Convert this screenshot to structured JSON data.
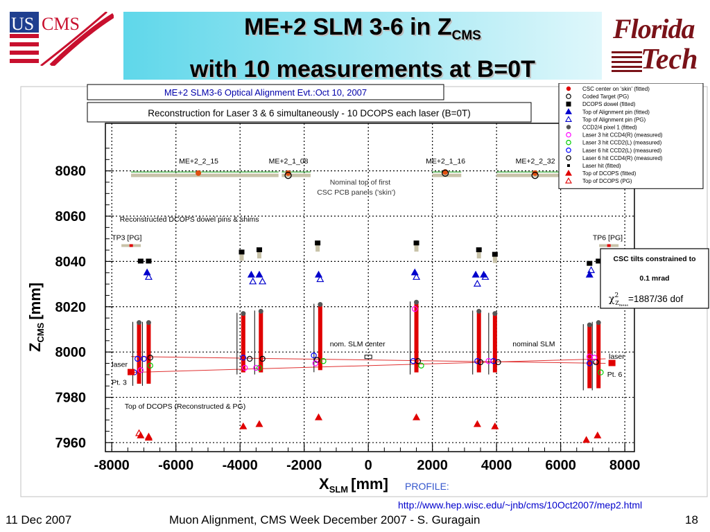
{
  "slide": {
    "title_line1": "ME+2 SLM 3-6 in Z",
    "title_line1_sub": "CMS",
    "title_line2": "with 10 measurements at B=0T",
    "logo_left_us": "US",
    "logo_left_cms": "CMS",
    "logo_right_line1": "Florida",
    "logo_right_line2": "Tech",
    "url": "http://www.hep.wisc.edu/~jnb/cms/10Oct2007/mep2.html",
    "footer_date": "11 Dec 2007",
    "footer_center": "Muon Alignment, CMS Week December 2007  - S. Guragain",
    "footer_page": "18"
  },
  "chart_data": {
    "type": "scatter",
    "title": "ME+2 SLM3-6 Optical Alignment Evt.:Oct 10, 2007",
    "subtitle": "Reconstruction for Laser 3 & 6 simultaneously - 10 DCOPS each laser (B=0T)",
    "xlabel_main": "X",
    "xlabel_sub": "SLM",
    "xlabel_unit": "[mm]",
    "xlabel_extra": "PROFILE:",
    "ylabel_main": "Z",
    "ylabel_sub": "CMS",
    "ylabel_unit": "[mm]",
    "xlim": [
      -8200,
      8300
    ],
    "ylim": [
      7956,
      8101
    ],
    "xticks": [
      -8000,
      -6000,
      -4000,
      -2000,
      0,
      2000,
      4000,
      6000,
      8000
    ],
    "yticks": [
      7960,
      7980,
      8000,
      8020,
      8040,
      8060,
      8080
    ],
    "grid": true,
    "legend_position": "top-right",
    "legend": [
      {
        "label": "CSC center on 'skin' (fitted)",
        "marker": "circle-filled",
        "color": "#e00000"
      },
      {
        "label": "Coded Target (PG)",
        "marker": "circle-open",
        "color": "#000000"
      },
      {
        "label": "DCOPS dowel (fitted)",
        "marker": "square-filled",
        "color": "#000000"
      },
      {
        "label": "Top of Alignment pin (fitted)",
        "marker": "triangle-filled",
        "color": "#0000cc"
      },
      {
        "label": "Top of Alignment pin (PG)",
        "marker": "triangle-open",
        "color": "#0000cc"
      },
      {
        "label": "CCD2/4 pixel 1 (fitted)",
        "marker": "circle-filled",
        "color": "#555555"
      },
      {
        "label": "Laser 3 hit CCD4(R) (measured)",
        "marker": "circle-open",
        "color": "#ff00ff"
      },
      {
        "label": "Laser 3 hit CCD2(L) (measured)",
        "marker": "circle-open",
        "color": "#00cc00"
      },
      {
        "label": "Laser 6 hit CCD2(L) (measured)",
        "marker": "circle-open",
        "color": "#0000ff"
      },
      {
        "label": "Laser 6 hit CCD4(R) (measured)",
        "marker": "circle-open",
        "color": "#000000"
      },
      {
        "label": "Laser hit (fitted)",
        "marker": "square-small",
        "color": "#000000"
      },
      {
        "label": "Top of DCOPS (fitted)",
        "marker": "triangle-filled",
        "color": "#e00000"
      },
      {
        "label": "Top of DCOPS (PG)",
        "marker": "triangle-open",
        "color": "#e00000"
      }
    ],
    "annotations": {
      "chambers": [
        {
          "label": "ME+2_2_15",
          "x": -5300,
          "z": 8079
        },
        {
          "label": "ME+2_1_08",
          "x": -2500,
          "z": 8078
        },
        {
          "label": "ME+2_1_16",
          "x": 2400,
          "z": 8079
        },
        {
          "label": "ME+2_2_32",
          "x": 5200,
          "z": 8079
        }
      ],
      "nominal_skin": "Nominal top of first",
      "nominal_skin_2": "CSC PCB panels ('skin')",
      "dowels_label": "Reconstructed DCOPS dowel pins & shims",
      "tp3": "TP3 [PG]",
      "tp6": "TP6 [PG]",
      "slm_center": "nom. SLM center",
      "nominal_slm": "nominal SLM",
      "laser_left": "laser",
      "laser_right": "laser",
      "pt3": "Pt. 3",
      "pt6": "Pt. 6",
      "dcops_top_label": "Top of DCOPS (Reconstructed & PG)",
      "tilt_box_line1": "CSC tilts constrained to",
      "tilt_box_line2": "0.1 mrad",
      "tilt_box_chi_pre": "χ",
      "tilt_box_chi_sup": "2",
      "tilt_box_chi_sub": "Z",
      "tilt_box_chi_subsub": "meas",
      "tilt_box_chi_val": "=1887/36 dof"
    },
    "laser3_line": {
      "x": [
        -7400,
        7400
      ],
      "z": [
        7991,
        7997
      ]
    },
    "laser6_line": {
      "x": [
        -7400,
        7400
      ],
      "z": [
        7998,
        7995
      ]
    },
    "dowel_columns": [
      {
        "x": -7100,
        "z_dowel": 8040
      },
      {
        "x": -6850,
        "z_dowel": 8040
      },
      {
        "x": -3950,
        "z_dowel": 8044
      },
      {
        "x": -3400,
        "z_dowel": 8045
      },
      {
        "x": -1580,
        "z_dowel": 8048
      },
      {
        "x": 1500,
        "z_dowel": 8048
      },
      {
        "x": 3450,
        "z_dowel": 8045
      },
      {
        "x": 3950,
        "z_dowel": 8043
      },
      {
        "x": 6900,
        "z_dowel": 8039
      },
      {
        "x": 7180,
        "z_dowel": 8040
      }
    ],
    "dcops_bars": [
      {
        "x": -7150,
        "z_top": 8013,
        "z_bot": 7986
      },
      {
        "x": -6850,
        "z_top": 8013,
        "z_bot": 7986
      },
      {
        "x": -3900,
        "z_top": 8017,
        "z_bot": 7991
      },
      {
        "x": -3350,
        "z_top": 8018,
        "z_bot": 7991
      },
      {
        "x": -1500,
        "z_top": 8021,
        "z_bot": 7992
      },
      {
        "x": 1500,
        "z_top": 8022,
        "z_bot": 7991
      },
      {
        "x": 3450,
        "z_top": 8018,
        "z_bot": 7991
      },
      {
        "x": 3950,
        "z_top": 8017,
        "z_bot": 7991
      },
      {
        "x": 6900,
        "z_top": 8012,
        "z_bot": 7984
      },
      {
        "x": 7180,
        "z_top": 8013,
        "z_bot": 7984
      }
    ],
    "pins_fitted": [
      {
        "x": -6900,
        "z": 8035
      },
      {
        "x": -3650,
        "z": 8034
      },
      {
        "x": -3400,
        "z": 8034
      },
      {
        "x": -1550,
        "z": 8034
      },
      {
        "x": 1450,
        "z": 8035
      },
      {
        "x": 3350,
        "z": 8034
      },
      {
        "x": 3600,
        "z": 8034
      },
      {
        "x": 6900,
        "z": 8034
      }
    ],
    "pins_pg": [
      {
        "x": -6850,
        "z": 8033
      },
      {
        "x": -3600,
        "z": 8031
      },
      {
        "x": -3300,
        "z": 8031
      },
      {
        "x": -1500,
        "z": 8032
      },
      {
        "x": 1500,
        "z": 8033
      },
      {
        "x": 3400,
        "z": 8030
      },
      {
        "x": 3650,
        "z": 8033
      },
      {
        "x": 6950,
        "z": 8036
      }
    ],
    "dcops_top_fitted": [
      {
        "x": -7100,
        "z": 7963
      },
      {
        "x": -6850,
        "z": 7962
      },
      {
        "x": -3900,
        "z": 7967
      },
      {
        "x": -3400,
        "z": 7968
      },
      {
        "x": -1550,
        "z": 7971
      },
      {
        "x": 1500,
        "z": 7971
      },
      {
        "x": 3400,
        "z": 7968
      },
      {
        "x": 3950,
        "z": 7967
      },
      {
        "x": 6800,
        "z": 7961
      },
      {
        "x": 7150,
        "z": 7963
      }
    ],
    "dcops_top_pg": [
      {
        "x": -7150,
        "z": 7964
      },
      {
        "x": -6850,
        "z": 7962.5
      }
    ],
    "laser_hits": [
      {
        "x": -7200,
        "z": 7997,
        "color": "#0000ff"
      },
      {
        "x": -7000,
        "z": 7997,
        "color": "#0000ff"
      },
      {
        "x": -6800,
        "z": 7997.5,
        "color": "#000000"
      },
      {
        "x": -7100,
        "z": 7992,
        "color": "#ff00ff"
      },
      {
        "x": -6800,
        "z": 7994,
        "color": "#00cc00"
      },
      {
        "x": -7300,
        "z": 7991,
        "color": "#0000ff"
      },
      {
        "x": -3900,
        "z": 7997.5,
        "color": "#0000ff"
      },
      {
        "x": -3700,
        "z": 7997,
        "color": "#000000"
      },
      {
        "x": -3850,
        "z": 7993,
        "color": "#ff00ff"
      },
      {
        "x": -3400,
        "z": 7993,
        "color": "#00cc00"
      },
      {
        "x": -3300,
        "z": 7997,
        "color": "#000000"
      },
      {
        "x": -3500,
        "z": 7993,
        "color": "#ff00ff"
      },
      {
        "x": -1700,
        "z": 7998.5,
        "color": "#0000ff"
      },
      {
        "x": -1600,
        "z": 7996.5,
        "color": "#000000"
      },
      {
        "x": -1650,
        "z": 7995,
        "color": "#ff00ff"
      },
      {
        "x": -1400,
        "z": 7996,
        "color": "#00cc00"
      },
      {
        "x": 1400,
        "z": 7996,
        "color": "#0000ff"
      },
      {
        "x": 1550,
        "z": 7996,
        "color": "#000000"
      },
      {
        "x": 1650,
        "z": 7994,
        "color": "#00cc00"
      },
      {
        "x": 1450,
        "z": 8019,
        "color": "#ff00ff"
      },
      {
        "x": 3400,
        "z": 7996,
        "color": "#0000ff"
      },
      {
        "x": 3500,
        "z": 7995.5,
        "color": "#000000"
      },
      {
        "x": 3900,
        "z": 7996,
        "color": "#0000ff"
      },
      {
        "x": 4050,
        "z": 7995.5,
        "color": "#000000"
      },
      {
        "x": 3750,
        "z": 7996,
        "color": "#ff00ff"
      },
      {
        "x": 6900,
        "z": 7995,
        "color": "#0000ff"
      },
      {
        "x": 6900,
        "z": 7998,
        "color": "#ff00ff"
      },
      {
        "x": 7100,
        "z": 7995.5,
        "color": "#000000"
      },
      {
        "x": 7250,
        "z": 7991,
        "color": "#00cc00"
      },
      {
        "x": 7050,
        "z": 7997.5,
        "color": "#ff00ff"
      }
    ],
    "coded_targets": [
      {
        "x": -2500,
        "z": 8078
      },
      {
        "x": 2400,
        "z": 8079
      },
      {
        "x": 5200,
        "z": 8078
      }
    ],
    "csc_centers": [
      {
        "x": -5300,
        "z": 8079
      },
      {
        "x": -2500,
        "z": 8079
      },
      {
        "x": 2400,
        "z": 8079.5
      },
      {
        "x": 5200,
        "z": 8079
      }
    ],
    "laser_endpoints": [
      {
        "x": -7400,
        "z": 7991
      },
      {
        "x": 7600,
        "z": 7995
      }
    ]
  }
}
